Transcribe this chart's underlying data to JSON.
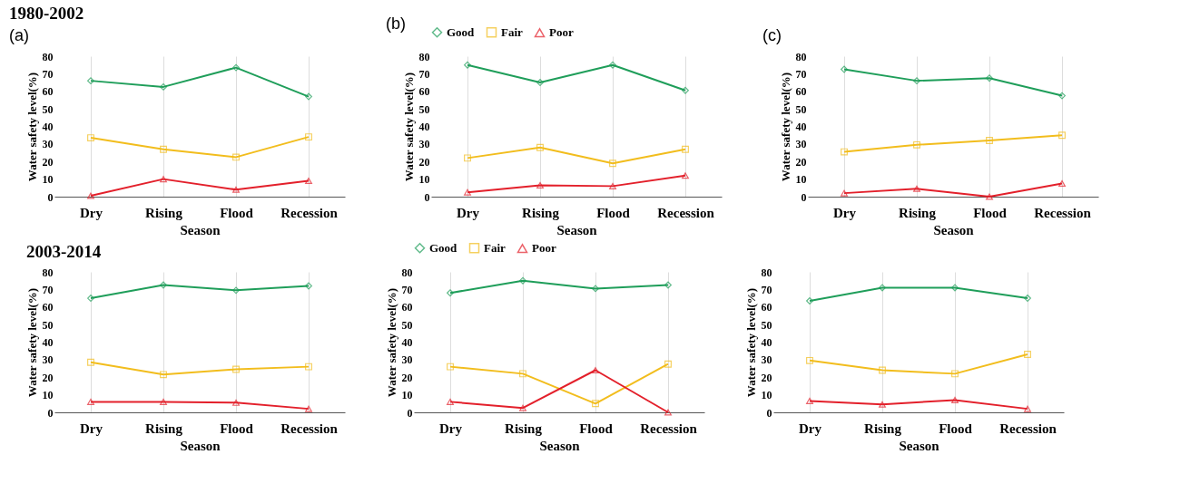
{
  "chart_data": [
    {
      "type": "line",
      "title": "1980-2002",
      "annotations": [
        "(a)"
      ],
      "categories": [
        "Dry",
        "Rising",
        "Flood",
        "Recession"
      ],
      "xlabel": "Season",
      "ylabel": "Water safety level(%)",
      "ylim": [
        0,
        80
      ],
      "yticks": [
        0,
        10,
        20,
        30,
        40,
        50,
        60,
        70,
        80
      ],
      "grid": "x",
      "legend": false,
      "series": [
        {
          "color": "#1f9e5a",
          "marker": "diamond",
          "values": [
            66,
            62.5,
            73.5,
            57
          ]
        },
        {
          "color": "#f2bd1d",
          "marker": "square",
          "values": [
            33.5,
            27,
            22.5,
            34
          ]
        },
        {
          "color": "#e3202b",
          "marker": "triangle",
          "values": [
            0.5,
            10,
            4,
            9
          ]
        }
      ]
    },
    {
      "type": "line",
      "annotations": [
        "(b)"
      ],
      "categories": [
        "Dry",
        "Rising",
        "Flood",
        "Recession"
      ],
      "xlabel": "Season",
      "ylabel": "Water safety level(%)",
      "ylim": [
        0,
        80
      ],
      "yticks": [
        0,
        10,
        20,
        30,
        40,
        50,
        60,
        70,
        80
      ],
      "grid": "x",
      "legend": "top",
      "series": [
        {
          "name": "Good",
          "color": "#1f9e5a",
          "marker": "diamond",
          "values": [
            75,
            65,
            75,
            60.5
          ]
        },
        {
          "name": "Fair",
          "color": "#f2bd1d",
          "marker": "square",
          "values": [
            22,
            28,
            19,
            27
          ]
        },
        {
          "name": "Poor",
          "color": "#e3202b",
          "marker": "triangle",
          "values": [
            2.5,
            6.5,
            6,
            12
          ]
        }
      ]
    },
    {
      "type": "line",
      "annotations": [
        "(c)"
      ],
      "categories": [
        "Dry",
        "Rising",
        "Flood",
        "Recession"
      ],
      "xlabel": "Season",
      "ylabel": "Water safety level(%)",
      "ylim": [
        0,
        80
      ],
      "yticks": [
        0,
        10,
        20,
        30,
        40,
        50,
        60,
        70,
        80
      ],
      "grid": "x",
      "legend": false,
      "series": [
        {
          "color": "#1f9e5a",
          "marker": "diamond",
          "values": [
            72.5,
            66,
            67.5,
            57.5
          ]
        },
        {
          "color": "#f2bd1d",
          "marker": "square",
          "values": [
            25.5,
            29.5,
            32,
            35
          ]
        },
        {
          "color": "#e3202b",
          "marker": "triangle",
          "values": [
            2,
            4.5,
            0,
            7.5
          ]
        }
      ]
    },
    {
      "type": "line",
      "title": "2003-2014",
      "categories": [
        "Dry",
        "Rising",
        "Flood",
        "Recession"
      ],
      "xlabel": "Season",
      "ylabel": "Water safety level(%)",
      "ylim": [
        0,
        80
      ],
      "yticks": [
        0,
        10,
        20,
        30,
        40,
        50,
        60,
        70,
        80
      ],
      "grid": "x",
      "legend": false,
      "series": [
        {
          "color": "#1f9e5a",
          "marker": "diamond",
          "values": [
            65,
            72.5,
            69.5,
            72
          ]
        },
        {
          "color": "#f2bd1d",
          "marker": "square",
          "values": [
            28.5,
            21.5,
            24.5,
            26
          ]
        },
        {
          "color": "#e3202b",
          "marker": "triangle",
          "values": [
            6,
            6,
            5.5,
            2
          ]
        }
      ]
    },
    {
      "type": "line",
      "categories": [
        "Dry",
        "Rising",
        "Flood",
        "Recession"
      ],
      "xlabel": "Season",
      "ylabel": "Water safety level(%)",
      "ylim": [
        0,
        80
      ],
      "yticks": [
        0,
        10,
        20,
        30,
        40,
        50,
        60,
        70,
        80
      ],
      "grid": "x",
      "legend": "top",
      "series": [
        {
          "name": "Good",
          "color": "#1f9e5a",
          "marker": "diamond",
          "values": [
            68,
            75,
            70.5,
            72.5
          ]
        },
        {
          "name": "Fair",
          "color": "#f2bd1d",
          "marker": "square",
          "values": [
            26,
            22,
            5,
            27.5
          ]
        },
        {
          "name": "Poor",
          "color": "#e3202b",
          "marker": "triangle",
          "values": [
            6,
            2.5,
            24,
            0
          ]
        }
      ]
    },
    {
      "type": "line",
      "categories": [
        "Dry",
        "Rising",
        "Flood",
        "Recession"
      ],
      "xlabel": "Season",
      "ylabel": "Water safety level(%)",
      "ylim": [
        0,
        80
      ],
      "yticks": [
        0,
        10,
        20,
        30,
        40,
        50,
        60,
        70,
        80
      ],
      "grid": "x",
      "legend": false,
      "series": [
        {
          "color": "#1f9e5a",
          "marker": "diamond",
          "values": [
            63.5,
            71,
            71,
            65
          ]
        },
        {
          "color": "#f2bd1d",
          "marker": "square",
          "values": [
            29.5,
            24,
            22,
            33
          ]
        },
        {
          "color": "#e3202b",
          "marker": "triangle",
          "values": [
            6.5,
            4.5,
            7,
            2
          ]
        }
      ]
    }
  ]
}
